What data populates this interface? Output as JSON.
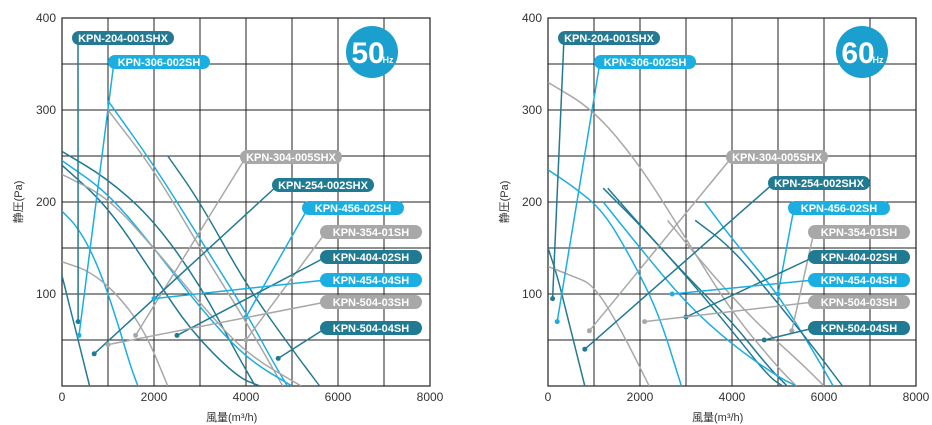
{
  "chart_data": [
    {
      "type": "line",
      "badge": "50",
      "badge_unit": "Hz",
      "xlabel": "風量(m³/h)",
      "ylabel": "静圧(Pa)",
      "xlim": [
        0,
        8000
      ],
      "ylim": [
        0,
        400
      ],
      "xticks": [
        0,
        2000,
        4000,
        6000,
        8000
      ],
      "yticks": [
        100,
        200,
        300,
        400
      ],
      "tick_labels_x": [
        "0",
        "2000",
        "4000",
        "6000",
        "8000"
      ],
      "tick_labels_y": [
        "100",
        "200",
        "300",
        "400"
      ],
      "grid": true,
      "series": [
        {
          "name": "KPN-204-001SHX",
          "color": "#237a92",
          "point": [
            350,
            70
          ],
          "curve": [
            [
              0,
              120
            ],
            [
              150,
              90
            ],
            [
              300,
              60
            ],
            [
              450,
              30
            ],
            [
              600,
              0
            ]
          ]
        },
        {
          "name": "KPN-306-002SH",
          "color": "#1baee0",
          "point": [
            370,
            55
          ],
          "curve": [
            [
              0,
              190
            ],
            [
              300,
              175
            ],
            [
              600,
              150
            ],
            [
              900,
              115
            ],
            [
              1200,
              70
            ],
            [
              1500,
              20
            ],
            [
              1650,
              0
            ]
          ]
        },
        {
          "name": "KPN-304-005SHX",
          "color": "#a8a8a8",
          "point": [
            1600,
            55
          ],
          "curve": [
            [
              0,
              135
            ],
            [
              600,
              125
            ],
            [
              1200,
              100
            ],
            [
              1800,
              60
            ],
            [
              2300,
              0
            ]
          ]
        },
        {
          "name": "KPN-254-002SHX",
          "color": "#207a92",
          "point": [
            700,
            35
          ],
          "curve": [
            [
              0,
              255
            ],
            [
              1000,
              225
            ],
            [
              2000,
              180
            ],
            [
              3000,
              110
            ],
            [
              3800,
              35
            ],
            [
              4200,
              0
            ]
          ]
        },
        {
          "name": "KPN-456-02SH",
          "color": "#1baee0",
          "point": [
            4000,
            75
          ],
          "curve": [
            [
              1000,
              310
            ],
            [
              2000,
              240
            ],
            [
              3000,
              160
            ],
            [
              4000,
              80
            ],
            [
              4600,
              25
            ],
            [
              4900,
              0
            ]
          ]
        },
        {
          "name": "KPN-354-01SH",
          "color": "#a8a8a8",
          "point": [
            4000,
            50
          ],
          "curve": [
            [
              1000,
              300
            ],
            [
              2000,
              235
            ],
            [
              3000,
              150
            ],
            [
              4000,
              70
            ],
            [
              4800,
              0
            ]
          ]
        },
        {
          "name": "KPN-404-02SH",
          "color": "#207a92",
          "point": [
            2500,
            55
          ],
          "curve": [
            [
              0,
              240
            ],
            [
              1000,
              195
            ],
            [
              2000,
              120
            ],
            [
              2800,
              60
            ],
            [
              3800,
              10
            ],
            [
              4300,
              0
            ]
          ]
        },
        {
          "name": "KPN-454-04SH",
          "color": "#1baee0",
          "point": [
            2000,
            95
          ],
          "curve": [
            [
              0,
              245
            ],
            [
              1000,
              210
            ],
            [
              2000,
              150
            ],
            [
              3000,
              85
            ],
            [
              4000,
              30
            ],
            [
              5000,
              0
            ]
          ]
        },
        {
          "name": "KPN-504-03SH",
          "color": "#a8a8a8",
          "point": [
            1000,
            45
          ],
          "curve": [
            [
              0,
              230
            ],
            [
              1000,
              205
            ],
            [
              2000,
              150
            ],
            [
              3000,
              90
            ],
            [
              4000,
              35
            ],
            [
              5200,
              0
            ]
          ]
        },
        {
          "name": "KPN-504-04SH",
          "color": "#207a92",
          "point": [
            4700,
            30
          ],
          "curve": [
            [
              2300,
              250
            ],
            [
              3000,
              200
            ],
            [
              4000,
              110
            ],
            [
              5000,
              40
            ],
            [
              5600,
              0
            ]
          ]
        }
      ]
    },
    {
      "type": "line",
      "badge": "60",
      "badge_unit": "Hz",
      "xlabel": "風量(m³/h)",
      "ylabel": "静圧(Pa)",
      "xlim": [
        0,
        8000
      ],
      "ylim": [
        0,
        400
      ],
      "xticks": [
        0,
        2000,
        4000,
        6000,
        8000
      ],
      "yticks": [
        100,
        200,
        300,
        400
      ],
      "tick_labels_x": [
        "0",
        "2000",
        "4000",
        "6000",
        "8000"
      ],
      "tick_labels_y": [
        "100",
        "200",
        "300",
        "400"
      ],
      "grid": true,
      "series": [
        {
          "name": "KPN-204-001SHX",
          "color": "#237a92",
          "point": [
            100,
            95
          ],
          "curve": [
            [
              0,
              150
            ],
            [
              200,
              120
            ],
            [
              400,
              80
            ],
            [
              600,
              40
            ],
            [
              800,
              0
            ]
          ]
        },
        {
          "name": "KPN-306-002SH",
          "color": "#1baee0",
          "point": [
            200,
            70
          ],
          "curve": [
            [
              0,
              235
            ],
            [
              600,
              215
            ],
            [
              1200,
              190
            ],
            [
              1800,
              140
            ],
            [
              2400,
              80
            ],
            [
              2900,
              0
            ]
          ]
        },
        {
          "name": "KPN-304-005SHX",
          "color": "#a8a8a8",
          "point": [
            900,
            60
          ],
          "curve": [
            [
              0,
              130
            ],
            [
              500,
              120
            ],
            [
              1000,
              110
            ],
            [
              1600,
              60
            ],
            [
              2200,
              0
            ]
          ]
        },
        {
          "name": "KPN-254-002SHX",
          "color": "#207a92",
          "point": [
            800,
            40
          ],
          "curve": [
            [
              1200,
              215
            ],
            [
              2000,
              175
            ],
            [
              3000,
              120
            ],
            [
              4000,
              60
            ],
            [
              4800,
              10
            ],
            [
              5100,
              0
            ]
          ]
        },
        {
          "name": "KPN-456-02SH",
          "color": "#1baee0",
          "point": [
            5000,
            100
          ],
          "curve": [
            [
              3400,
              200
            ],
            [
              4000,
              160
            ],
            [
              5000,
              100
            ],
            [
              5800,
              35
            ],
            [
              6200,
              0
            ]
          ]
        },
        {
          "name": "KPN-354-01SH",
          "color": "#a8a8a8",
          "point": [
            5300,
            60
          ],
          "curve": [
            [
              0,
              330
            ],
            [
              1000,
              300
            ],
            [
              2000,
              240
            ],
            [
              3000,
              160
            ],
            [
              4000,
              80
            ],
            [
              5000,
              20
            ],
            [
              5400,
              0
            ]
          ]
        },
        {
          "name": "KPN-404-02SH",
          "color": "#207a92",
          "point": [
            3000,
            75
          ],
          "curve": [
            [
              1300,
              215
            ],
            [
              2000,
              175
            ],
            [
              3000,
              120
            ],
            [
              4000,
              70
            ],
            [
              4800,
              20
            ],
            [
              5200,
              0
            ]
          ]
        },
        {
          "name": "KPN-454-04SH",
          "color": "#1baee0",
          "point": [
            2700,
            100
          ],
          "curve": [
            [
              1200,
              200
            ],
            [
              2000,
              150
            ],
            [
              3000,
              90
            ],
            [
              4000,
              45
            ],
            [
              5000,
              10
            ],
            [
              5400,
              0
            ]
          ]
        },
        {
          "name": "KPN-504-03SH",
          "color": "#a8a8a8",
          "point": [
            2100,
            70
          ],
          "curve": [
            [
              2600,
              180
            ],
            [
              3500,
              125
            ],
            [
              4500,
              70
            ],
            [
              5500,
              25
            ],
            [
              6000,
              0
            ]
          ]
        },
        {
          "name": "KPN-504-04SH",
          "color": "#207a92",
          "point": [
            4700,
            50
          ],
          "curve": [
            [
              3200,
              180
            ],
            [
              4000,
              150
            ],
            [
              5000,
              90
            ],
            [
              5800,
              40
            ],
            [
              6400,
              0
            ]
          ]
        }
      ]
    }
  ]
}
